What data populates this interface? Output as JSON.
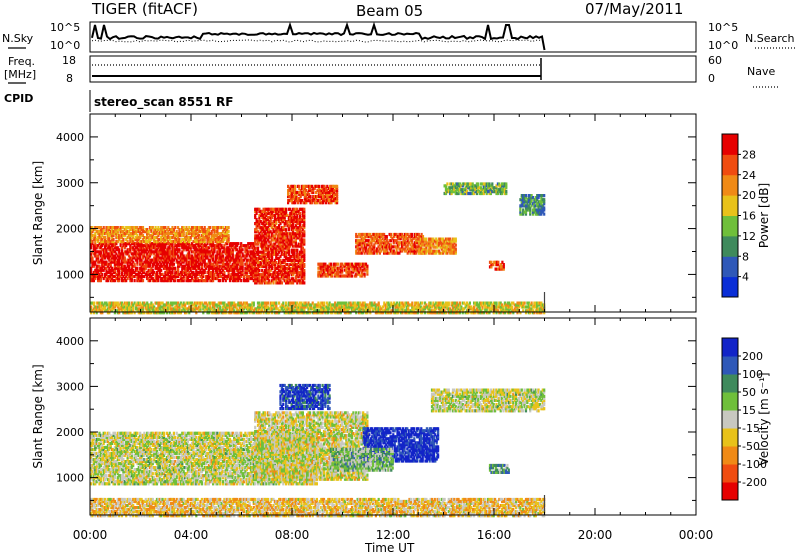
{
  "header": {
    "station": "TIGER (fitACF)",
    "beam": "Beam 05",
    "date": "07/May/2011"
  },
  "strips": {
    "nsky": {
      "label": "N.Sky",
      "ticks": [
        "10^5",
        "10^0"
      ]
    },
    "nsearch": {
      "label": "N.Search",
      "ticks": [
        "10^5",
        "10^0"
      ]
    },
    "freq": {
      "label_line1": "Freq.",
      "label_line2": "[MHz]",
      "ticks": [
        "18",
        "8"
      ]
    },
    "nave": {
      "label": "Nave",
      "ticks": [
        "60",
        "0"
      ]
    },
    "cpid": {
      "label": "CPID",
      "value": "stereo_scan 8551 RF"
    }
  },
  "colors": {
    "power": [
      "#0a2ed6",
      "#2f58b8",
      "#3f8a5c",
      "#6fbf3a",
      "#e8c21a",
      "#f08a16",
      "#f04c10",
      "#e60000"
    ],
    "velocity": [
      "#e60000",
      "#f04c10",
      "#f08a16",
      "#e8c21a",
      "#c8c8c0",
      "#6fbf3a",
      "#3f8a5c",
      "#2f58b8",
      "#1224c8"
    ]
  },
  "chart_data": [
    {
      "type": "heatmap",
      "panel": "power",
      "ylabel": "Slant Range [km]",
      "y_ticks": [
        "1000",
        "2000",
        "3000",
        "4000"
      ],
      "ylim": [
        180,
        4500
      ],
      "x_ticks": [
        "00:00",
        "04:00",
        "08:00",
        "12:00",
        "16:00",
        "20:00",
        "00:00"
      ],
      "xlim_hours": [
        0,
        24
      ],
      "colorbar_label": "Power [dB]",
      "colorbar_ticks": [
        "28",
        "24",
        "20",
        "16",
        "12",
        "8",
        "4"
      ],
      "colorbar_range": [
        0,
        32
      ],
      "data_end_hour": 18,
      "regions": [
        {
          "t0": 0.0,
          "t1": 6.5,
          "r0": 900,
          "r1": 1750,
          "level": 0.95
        },
        {
          "t0": 0.0,
          "t1": 5.5,
          "r0": 1750,
          "r1": 2100,
          "level": 0.7
        },
        {
          "t0": 6.5,
          "t1": 8.5,
          "r0": 850,
          "r1": 2500,
          "level": 0.9
        },
        {
          "t0": 7.8,
          "t1": 9.8,
          "r0": 2600,
          "r1": 3000,
          "level": 0.85
        },
        {
          "t0": 9.0,
          "t1": 11.0,
          "r0": 1000,
          "r1": 1300,
          "level": 0.85
        },
        {
          "t0": 10.5,
          "t1": 13.2,
          "r0": 1500,
          "r1": 1950,
          "level": 0.8
        },
        {
          "t0": 13.0,
          "t1": 14.5,
          "r0": 1500,
          "r1": 1850,
          "level": 0.7
        },
        {
          "t0": 15.8,
          "t1": 16.4,
          "r0": 1150,
          "r1": 1350,
          "level": 0.85
        },
        {
          "t0": 17.0,
          "t1": 18.0,
          "r0": 2350,
          "r1": 2800,
          "level": 0.3
        },
        {
          "t0": 14.0,
          "t1": 16.5,
          "r0": 2800,
          "r1": 3050,
          "level": 0.4
        },
        {
          "t0": 0.0,
          "t1": 18.0,
          "r0": 200,
          "r1": 450,
          "level": 0.55
        }
      ]
    },
    {
      "type": "heatmap",
      "panel": "velocity",
      "xlabel": "Time UT",
      "ylabel": "Slant Range [km]",
      "y_ticks": [
        "1000",
        "2000",
        "3000",
        "4000"
      ],
      "ylim": [
        180,
        4500
      ],
      "x_ticks": [
        "00:00",
        "04:00",
        "08:00",
        "12:00",
        "16:00",
        "20:00",
        "00:00"
      ],
      "xlim_hours": [
        0,
        24
      ],
      "colorbar_label": "Velocity [m s⁻¹]",
      "colorbar_ticks": [
        "200",
        "100",
        "50",
        "15",
        "-15",
        "-50",
        "-100",
        "-200"
      ],
      "colorbar_range": [
        -250,
        250
      ],
      "data_end_hour": 18,
      "regions": [
        {
          "t0": 0.0,
          "t1": 9.0,
          "r0": 900,
          "r1": 2050,
          "level": 0.5
        },
        {
          "t0": 6.5,
          "t1": 11.0,
          "r0": 1000,
          "r1": 2500,
          "level": 0.48
        },
        {
          "t0": 7.5,
          "t1": 9.5,
          "r0": 2550,
          "r1": 3100,
          "level": 0.9
        },
        {
          "t0": 10.8,
          "t1": 13.8,
          "r0": 1400,
          "r1": 2150,
          "level": 0.97
        },
        {
          "t0": 9.5,
          "t1": 12.0,
          "r0": 1200,
          "r1": 1700,
          "level": 0.62
        },
        {
          "t0": 15.8,
          "t1": 16.6,
          "r0": 1150,
          "r1": 1350,
          "level": 0.7
        },
        {
          "t0": 13.5,
          "t1": 18.0,
          "r0": 2500,
          "r1": 3000,
          "level": 0.5
        },
        {
          "t0": 0.0,
          "t1": 18.0,
          "r0": 200,
          "r1": 600,
          "level": 0.4
        }
      ]
    }
  ]
}
